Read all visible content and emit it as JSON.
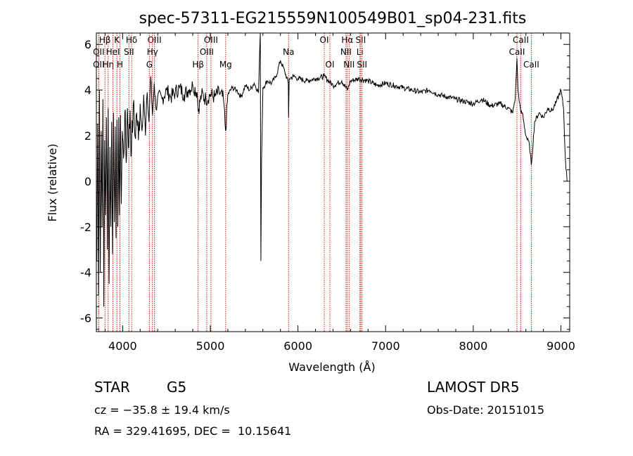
{
  "chart_data": {
    "type": "line",
    "title": "spec-57311-EG215559N100549B01_sp04-231.fits",
    "xlabel": "Wavelength (Å)",
    "ylabel": "Flux (relative)",
    "xlim": [
      3700,
      9100
    ],
    "ylim": [
      -6.6,
      6.5
    ],
    "xticks": [
      4000,
      5000,
      6000,
      7000,
      8000,
      9000
    ],
    "yticks": [
      -6,
      -4,
      -2,
      0,
      2,
      4,
      6
    ],
    "grid": false,
    "line_color": "#000000",
    "marker_color": "#cc0000",
    "series": [
      {
        "x": [
          3705,
          3715,
          3725,
          3735,
          3745,
          3755,
          3765,
          3775,
          3785,
          3795,
          3805,
          3815,
          3825,
          3835,
          3845,
          3855,
          3865,
          3875,
          3885,
          3895,
          3905,
          3915,
          3925,
          3935,
          3945,
          3955,
          3965,
          3975,
          3985,
          3995,
          4010,
          4025,
          4040,
          4055,
          4070,
          4085,
          4100,
          4120,
          4140,
          4160,
          4180,
          4200,
          4220,
          4240,
          4260,
          4280,
          4300,
          4320,
          4340,
          4360,
          4380,
          4400,
          4450,
          4500,
          4550,
          4600,
          4650,
          4700,
          4750,
          4800,
          4850,
          4861,
          4900,
          4950,
          5000,
          5050,
          5100,
          5150,
          5175,
          5200,
          5250,
          5300,
          5350,
          5400,
          5450,
          5500,
          5550,
          5570,
          5577,
          5585,
          5600,
          5650,
          5700,
          5750,
          5800,
          5850,
          5890,
          5893,
          5900,
          5950,
          6000,
          6100,
          6200,
          6300,
          6400,
          6500,
          6563,
          6600,
          6700,
          6800,
          6900,
          7000,
          7100,
          7200,
          7300,
          7400,
          7500,
          7600,
          7700,
          7800,
          7900,
          8000,
          8100,
          8200,
          8300,
          8400,
          8450,
          8480,
          8498,
          8510,
          8530,
          8542,
          8560,
          8600,
          8640,
          8662,
          8700,
          8750,
          8800,
          8850,
          8900,
          8950,
          9000,
          9030,
          9050,
          9070
        ],
        "y": [
          -3.5,
          2.5,
          -5.0,
          4.0,
          -4.0,
          2.2,
          -2.0,
          3.6,
          -5.5,
          1.8,
          -1.5,
          2.8,
          -3.0,
          3.2,
          -4.5,
          1.5,
          -2.0,
          2.6,
          -3.2,
          3.0,
          -1.8,
          2.4,
          -2.5,
          2.7,
          -2.0,
          2.8,
          -1.5,
          2.9,
          -1.0,
          2.2,
          1.0,
          3.0,
          0.8,
          3.2,
          1.5,
          3.1,
          1.2,
          3.3,
          2.0,
          3.0,
          1.8,
          3.4,
          2.2,
          3.8,
          2.0,
          3.9,
          2.6,
          4.6,
          2.9,
          4.3,
          3.2,
          3.7,
          3.6,
          4.0,
          3.7,
          3.9,
          4.1,
          3.8,
          4.0,
          4.2,
          3.9,
          3.1,
          3.8,
          3.6,
          3.8,
          3.7,
          3.9,
          3.6,
          2.2,
          3.8,
          4.1,
          4.0,
          3.7,
          4.2,
          4.0,
          4.3,
          3.9,
          6.5,
          -3.5,
          1.0,
          4.1,
          4.4,
          4.3,
          4.6,
          5.3,
          4.8,
          4.3,
          2.8,
          4.5,
          4.6,
          4.5,
          4.4,
          4.5,
          4.6,
          4.2,
          4.4,
          4.0,
          4.4,
          4.5,
          4.4,
          4.2,
          4.3,
          4.2,
          4.1,
          4.0,
          3.9,
          4.0,
          3.8,
          3.7,
          3.6,
          3.5,
          3.4,
          3.6,
          3.3,
          3.4,
          3.2,
          3.0,
          3.7,
          5.4,
          4.0,
          3.4,
          3.0,
          3.0,
          2.0,
          1.6,
          0.7,
          2.6,
          3.0,
          2.8,
          3.2,
          3.1,
          3.5,
          4.0,
          3.2,
          1.0,
          0.0
        ]
      }
    ],
    "line_markers": [
      {
        "label": "Hβ",
        "x": 3798,
        "row": 1
      },
      {
        "label": "OII",
        "x": 3727,
        "row": 2
      },
      {
        "label": "OII",
        "x": 3727,
        "row": 3
      },
      {
        "label": "Hη",
        "x": 3835,
        "row": 3
      },
      {
        "label": "K",
        "x": 3934,
        "row": 1
      },
      {
        "label": "HeI",
        "x": 3889,
        "row": 2
      },
      {
        "label": "SII",
        "x": 4072,
        "row": 2
      },
      {
        "label": "H",
        "x": 3969,
        "row": 3
      },
      {
        "label": "Hδ",
        "x": 4102,
        "row": 1
      },
      {
        "label": "OIII",
        "x": 4363,
        "row": 1
      },
      {
        "label": "Hγ",
        "x": 4340,
        "row": 2
      },
      {
        "label": "G",
        "x": 4305,
        "row": 3
      },
      {
        "label": "OIII",
        "x": 5007,
        "row": 1
      },
      {
        "label": "OIII",
        "x": 4959,
        "row": 2
      },
      {
        "label": "Hβ",
        "x": 4861,
        "row": 3
      },
      {
        "label": "Mg",
        "x": 5175,
        "row": 3
      },
      {
        "label": "Na",
        "x": 5893,
        "row": 2
      },
      {
        "label": "OI",
        "x": 6300,
        "row": 1
      },
      {
        "label": "OI",
        "x": 6364,
        "row": 3
      },
      {
        "label": "Hα",
        "x": 6563,
        "row": 1
      },
      {
        "label": "SII",
        "x": 6716,
        "row": 1
      },
      {
        "label": "NII",
        "x": 6548,
        "row": 2
      },
      {
        "label": "Li",
        "x": 6707,
        "row": 2
      },
      {
        "label": "NII",
        "x": 6583,
        "row": 3
      },
      {
        "label": "SII",
        "x": 6731,
        "row": 3
      },
      {
        "label": "CaII",
        "x": 8542,
        "row": 1
      },
      {
        "label": "CaII",
        "x": 8498,
        "row": 2
      },
      {
        "label": "CaII",
        "x": 8662,
        "row": 3
      }
    ]
  },
  "info": {
    "object_class": "STAR",
    "subclass": "G5",
    "survey": "LAMOST DR5",
    "cz": "cz = −35.8 ± 19.4 km/s",
    "obs_date": "Obs-Date: 20151015",
    "coords": "RA = 329.41695, DEC =  10.15641"
  }
}
